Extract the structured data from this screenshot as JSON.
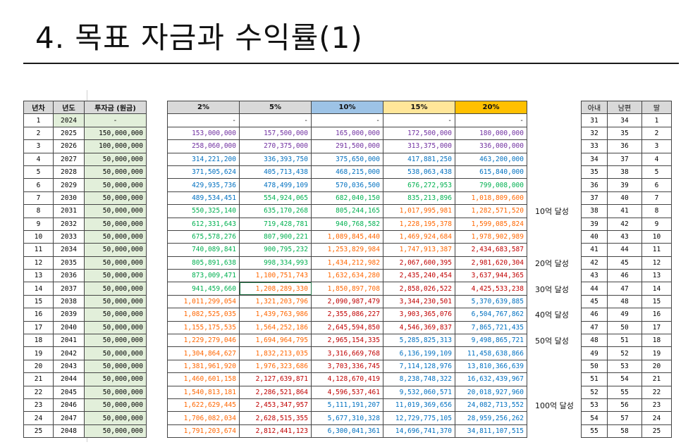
{
  "title": "4. 목표 자금과 수익률(1)",
  "left_headers": [
    "년차",
    "년도",
    "투자금 (원금)"
  ],
  "rate_headers": [
    "2%",
    "5%",
    "10%",
    "15%",
    "20%"
  ],
  "right_headers": [
    "아내",
    "남편",
    "딸"
  ],
  "colors": {
    "purple": "#7030a0",
    "blue": "#0070c0",
    "green": "#00b050",
    "orange": "#ff6600",
    "red": "#c00000",
    "lightblue": "#9dc3e6",
    "gold": "#ffc000",
    "yellow": "#ffe699",
    "palegreen": "#e2efda"
  },
  "rows": [
    {
      "n": "1",
      "year": "2024",
      "inv": "-",
      "v": [
        "-",
        "-",
        "-",
        "-",
        "-"
      ],
      "c": [
        "d",
        "d",
        "d",
        "d",
        "d"
      ],
      "w": "31",
      "h": "34",
      "d": "1"
    },
    {
      "n": "2",
      "year": "2025",
      "inv": "150,000,000",
      "v": [
        "153,000,000",
        "157,500,000",
        "165,000,000",
        "172,500,000",
        "180,000,000"
      ],
      "c": [
        "p",
        "p",
        "p",
        "p",
        "p"
      ],
      "w": "32",
      "h": "35",
      "d": "2"
    },
    {
      "n": "3",
      "year": "2026",
      "inv": "100,000,000",
      "v": [
        "258,060,000",
        "270,375,000",
        "291,500,000",
        "313,375,000",
        "336,000,000"
      ],
      "c": [
        "p",
        "p",
        "p",
        "p",
        "p"
      ],
      "w": "33",
      "h": "36",
      "d": "3"
    },
    {
      "n": "4",
      "year": "2027",
      "inv": "50,000,000",
      "v": [
        "314,221,200",
        "336,393,750",
        "375,650,000",
        "417,881,250",
        "463,200,000"
      ],
      "c": [
        "b",
        "b",
        "b",
        "b",
        "b"
      ],
      "w": "34",
      "h": "37",
      "d": "4"
    },
    {
      "n": "5",
      "year": "2028",
      "inv": "50,000,000",
      "v": [
        "371,505,624",
        "405,713,438",
        "468,215,000",
        "538,063,438",
        "615,840,000"
      ],
      "c": [
        "b",
        "b",
        "b",
        "b",
        "b"
      ],
      "w": "35",
      "h": "38",
      "d": "5"
    },
    {
      "n": "6",
      "year": "2029",
      "inv": "50,000,000",
      "v": [
        "429,935,736",
        "478,499,109",
        "570,036,500",
        "676,272,953",
        "799,008,000"
      ],
      "c": [
        "b",
        "b",
        "b",
        "g",
        "g"
      ],
      "w": "36",
      "h": "39",
      "d": "6"
    },
    {
      "n": "7",
      "year": "2030",
      "inv": "50,000,000",
      "v": [
        "489,534,451",
        "554,924,065",
        "682,040,150",
        "835,213,896",
        "1,018,809,600"
      ],
      "c": [
        "b",
        "g",
        "g",
        "g",
        "o"
      ],
      "w": "37",
      "h": "40",
      "d": "7"
    },
    {
      "n": "8",
      "year": "2031",
      "inv": "50,000,000",
      "v": [
        "550,325,140",
        "635,170,268",
        "805,244,165",
        "1,017,995,981",
        "1,282,571,520"
      ],
      "c": [
        "g",
        "g",
        "g",
        "o",
        "o"
      ],
      "w": "38",
      "h": "41",
      "d": "8"
    },
    {
      "n": "9",
      "year": "2032",
      "inv": "50,000,000",
      "v": [
        "612,331,643",
        "719,428,781",
        "940,768,582",
        "1,228,195,378",
        "1,599,085,824"
      ],
      "c": [
        "g",
        "g",
        "g",
        "o",
        "o"
      ],
      "w": "39",
      "h": "42",
      "d": "9"
    },
    {
      "n": "10",
      "year": "2033",
      "inv": "50,000,000",
      "v": [
        "675,578,276",
        "807,900,221",
        "1,089,845,440",
        "1,469,924,684",
        "1,978,902,989"
      ],
      "c": [
        "g",
        "g",
        "o",
        "o",
        "o"
      ],
      "w": "40",
      "h": "43",
      "d": "10"
    },
    {
      "n": "11",
      "year": "2034",
      "inv": "50,000,000",
      "v": [
        "740,089,841",
        "900,795,232",
        "1,253,829,984",
        "1,747,913,387",
        "2,434,683,587"
      ],
      "c": [
        "g",
        "g",
        "o",
        "o",
        "r"
      ],
      "w": "41",
      "h": "44",
      "d": "11"
    },
    {
      "n": "12",
      "year": "2035",
      "inv": "50,000,000",
      "v": [
        "805,891,638",
        "998,334,993",
        "1,434,212,982",
        "2,067,600,395",
        "2,981,620,304"
      ],
      "c": [
        "g",
        "g",
        "o",
        "r",
        "r"
      ],
      "w": "42",
      "h": "45",
      "d": "12"
    },
    {
      "n": "13",
      "year": "2036",
      "inv": "50,000,000",
      "v": [
        "873,009,471",
        "1,100,751,743",
        "1,632,634,280",
        "2,435,240,454",
        "3,637,944,365"
      ],
      "c": [
        "g",
        "o",
        "o",
        "r",
        "r"
      ],
      "w": "43",
      "h": "46",
      "d": "13"
    },
    {
      "n": "14",
      "year": "2037",
      "inv": "50,000,000",
      "v": [
        "941,459,660",
        "1,208,289,330",
        "1,850,897,708",
        "2,858,026,522",
        "4,425,533,238"
      ],
      "c": [
        "g",
        "o",
        "o",
        "r",
        "r"
      ],
      "w": "44",
      "h": "47",
      "d": "14"
    },
    {
      "n": "15",
      "year": "2038",
      "inv": "50,000,000",
      "v": [
        "1,011,299,054",
        "1,321,203,796",
        "2,090,987,479",
        "3,344,230,501",
        "5,370,639,885"
      ],
      "c": [
        "o",
        "o",
        "r",
        "r",
        "b"
      ],
      "w": "45",
      "h": "48",
      "d": "15"
    },
    {
      "n": "16",
      "year": "2039",
      "inv": "50,000,000",
      "v": [
        "1,082,525,035",
        "1,439,763,986",
        "2,355,086,227",
        "3,903,365,076",
        "6,504,767,862"
      ],
      "c": [
        "o",
        "o",
        "r",
        "r",
        "b"
      ],
      "w": "46",
      "h": "49",
      "d": "16"
    },
    {
      "n": "17",
      "year": "2040",
      "inv": "50,000,000",
      "v": [
        "1,155,175,535",
        "1,564,252,186",
        "2,645,594,850",
        "4,546,369,837",
        "7,865,721,435"
      ],
      "c": [
        "o",
        "o",
        "r",
        "r",
        "b"
      ],
      "w": "47",
      "h": "50",
      "d": "17"
    },
    {
      "n": "18",
      "year": "2041",
      "inv": "50,000,000",
      "v": [
        "1,229,279,046",
        "1,694,964,795",
        "2,965,154,335",
        "5,285,825,313",
        "9,498,865,721"
      ],
      "c": [
        "o",
        "o",
        "r",
        "b",
        "b"
      ],
      "w": "48",
      "h": "51",
      "d": "18"
    },
    {
      "n": "19",
      "year": "2042",
      "inv": "50,000,000",
      "v": [
        "1,304,864,627",
        "1,832,213,035",
        "3,316,669,768",
        "6,136,199,109",
        "11,458,638,866"
      ],
      "c": [
        "o",
        "o",
        "r",
        "b",
        "b"
      ],
      "w": "49",
      "h": "52",
      "d": "19"
    },
    {
      "n": "20",
      "year": "2043",
      "inv": "50,000,000",
      "v": [
        "1,381,961,920",
        "1,976,323,686",
        "3,703,336,745",
        "7,114,128,976",
        "13,810,366,639"
      ],
      "c": [
        "o",
        "o",
        "r",
        "b",
        "b"
      ],
      "w": "50",
      "h": "53",
      "d": "20"
    },
    {
      "n": "21",
      "year": "2044",
      "inv": "50,000,000",
      "v": [
        "1,460,601,158",
        "2,127,639,871",
        "4,128,670,419",
        "8,238,748,322",
        "16,632,439,967"
      ],
      "c": [
        "o",
        "r",
        "r",
        "b",
        "b"
      ],
      "w": "51",
      "h": "54",
      "d": "21"
    },
    {
      "n": "22",
      "year": "2045",
      "inv": "50,000,000",
      "v": [
        "1,540,813,181",
        "2,286,521,864",
        "4,596,537,461",
        "9,532,060,571",
        "20,018,927,960"
      ],
      "c": [
        "o",
        "r",
        "r",
        "b",
        "b"
      ],
      "w": "52",
      "h": "55",
      "d": "22"
    },
    {
      "n": "23",
      "year": "2046",
      "inv": "50,000,000",
      "v": [
        "1,622,629,445",
        "2,453,347,957",
        "5,111,191,207",
        "11,019,369,656",
        "24,082,713,552"
      ],
      "c": [
        "o",
        "r",
        "b",
        "b",
        "b"
      ],
      "w": "53",
      "h": "56",
      "d": "23"
    },
    {
      "n": "24",
      "year": "2047",
      "inv": "50,000,000",
      "v": [
        "1,706,082,034",
        "2,628,515,355",
        "5,677,310,328",
        "12,729,775,105",
        "28,959,256,262"
      ],
      "c": [
        "o",
        "r",
        "b",
        "b",
        "b"
      ],
      "w": "54",
      "h": "57",
      "d": "24"
    },
    {
      "n": "25",
      "year": "2048",
      "inv": "50,000,000",
      "v": [
        "1,791,203,674",
        "2,812,441,123",
        "6,300,041,361",
        "14,696,741,370",
        "34,811,107,515"
      ],
      "c": [
        "o",
        "r",
        "b",
        "b",
        "b"
      ],
      "w": "55",
      "h": "58",
      "d": "25"
    }
  ],
  "milestones": [
    {
      "row": 8,
      "text": "10억 달성"
    },
    {
      "row": 12,
      "text": "20억 달성"
    },
    {
      "row": 14,
      "text": "30억 달성"
    },
    {
      "row": 16,
      "text": "40억 달성"
    },
    {
      "row": 18,
      "text": "50억 달성"
    },
    {
      "row": 23,
      "text": "100억 달성"
    }
  ]
}
